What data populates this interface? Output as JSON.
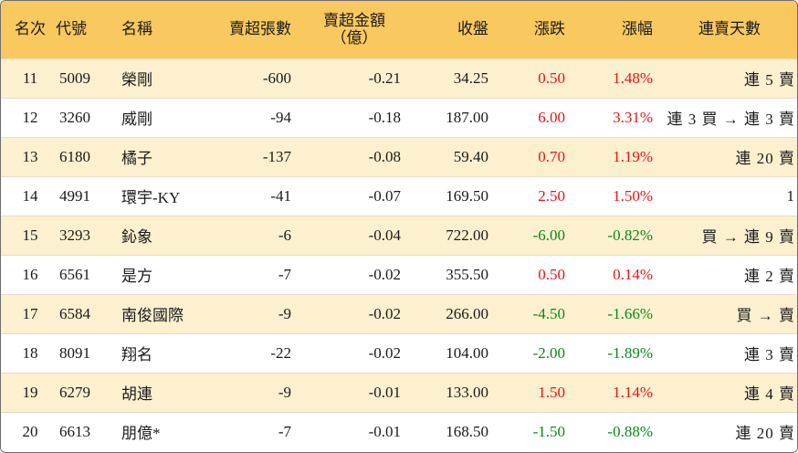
{
  "header": {
    "rank": "名次",
    "code": "代號",
    "name": "名稱",
    "net_sell_lots": "賣超張數",
    "net_sell_amount_line1": "賣超金額",
    "net_sell_amount_line2": "（億）",
    "close": "收盤",
    "change": "漲跌",
    "change_pct": "漲幅",
    "consecutive_days": "連賣天數"
  },
  "colors": {
    "header_bg": "#f9c85f",
    "odd_row_bg": "#fdf0cf",
    "even_row_bg": "#ffffff",
    "up": "#e8141b",
    "down": "#0a8a17"
  },
  "rows": [
    {
      "rank": "11",
      "code": "5009",
      "name": "榮剛",
      "lots": "-600",
      "amount": "-0.21",
      "close": "34.25",
      "change": "0.50",
      "pct": "1.48%",
      "dir": "up",
      "days": "連 5 賣"
    },
    {
      "rank": "12",
      "code": "3260",
      "name": "威剛",
      "lots": "-94",
      "amount": "-0.18",
      "close": "187.00",
      "change": "6.00",
      "pct": "3.31%",
      "dir": "up",
      "days": "連 3 買 → 連 3 賣"
    },
    {
      "rank": "13",
      "code": "6180",
      "name": "橘子",
      "lots": "-137",
      "amount": "-0.08",
      "close": "59.40",
      "change": "0.70",
      "pct": "1.19%",
      "dir": "up",
      "days": "連 20 賣"
    },
    {
      "rank": "14",
      "code": "4991",
      "name": "環宇-KY",
      "lots": "-41",
      "amount": "-0.07",
      "close": "169.50",
      "change": "2.50",
      "pct": "1.50%",
      "dir": "up",
      "days": "1"
    },
    {
      "rank": "15",
      "code": "3293",
      "name": "鈊象",
      "lots": "-6",
      "amount": "-0.04",
      "close": "722.00",
      "change": "-6.00",
      "pct": "-0.82%",
      "dir": "down",
      "days": "買 → 連 9 賣"
    },
    {
      "rank": "16",
      "code": "6561",
      "name": "是方",
      "lots": "-7",
      "amount": "-0.02",
      "close": "355.50",
      "change": "0.50",
      "pct": "0.14%",
      "dir": "up",
      "days": "連 2 賣"
    },
    {
      "rank": "17",
      "code": "6584",
      "name": "南俊國際",
      "lots": "-9",
      "amount": "-0.02",
      "close": "266.00",
      "change": "-4.50",
      "pct": "-1.66%",
      "dir": "down",
      "days": "買 → 賣"
    },
    {
      "rank": "18",
      "code": "8091",
      "name": "翔名",
      "lots": "-22",
      "amount": "-0.02",
      "close": "104.00",
      "change": "-2.00",
      "pct": "-1.89%",
      "dir": "down",
      "days": "連 3 賣"
    },
    {
      "rank": "19",
      "code": "6279",
      "name": "胡連",
      "lots": "-9",
      "amount": "-0.01",
      "close": "133.00",
      "change": "1.50",
      "pct": "1.14%",
      "dir": "up",
      "days": "連 4 賣"
    },
    {
      "rank": "20",
      "code": "6613",
      "name": "朋億*",
      "lots": "-7",
      "amount": "-0.01",
      "close": "168.50",
      "change": "-1.50",
      "pct": "-0.88%",
      "dir": "down",
      "days": "連 20 賣"
    }
  ]
}
